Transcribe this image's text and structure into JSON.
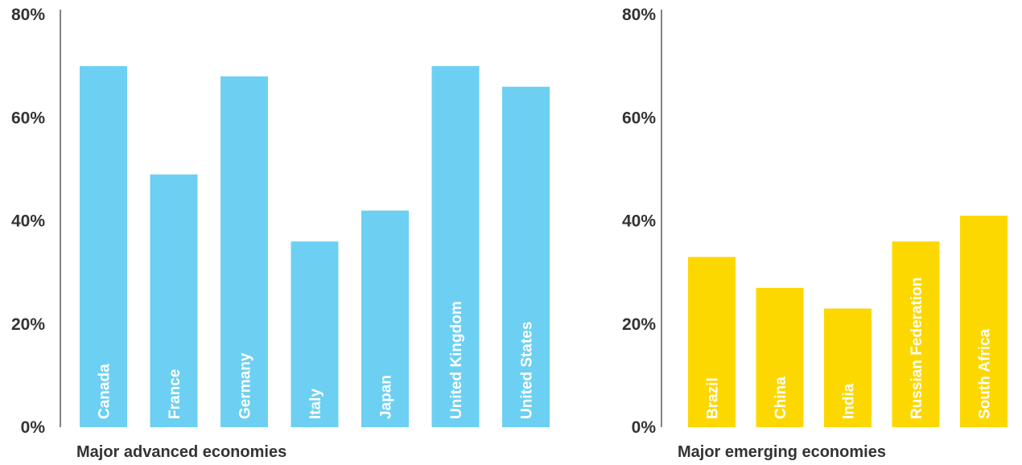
{
  "chart_data": [
    {
      "type": "bar",
      "xlabel": "Major advanced economies",
      "color": "#6dd0f2",
      "ylim": [
        0,
        80
      ],
      "yticks": [
        "0%",
        "20%",
        "40%",
        "60%",
        "80%"
      ],
      "categories": [
        "Canada",
        "France",
        "Germany",
        "Italy",
        "Japan",
        "United Kingdom",
        "United States"
      ],
      "values": [
        70,
        49,
        68,
        36,
        42,
        70,
        66
      ]
    },
    {
      "type": "bar",
      "xlabel": "Major emerging economies",
      "color": "#fcd800",
      "ylim": [
        0,
        80
      ],
      "yticks": [
        "0%",
        "20%",
        "40%",
        "60%",
        "80%"
      ],
      "categories": [
        "Brazil",
        "China",
        "India",
        "Russian Federation",
        "South Africa"
      ],
      "values": [
        33,
        27,
        23,
        36,
        41
      ]
    }
  ]
}
